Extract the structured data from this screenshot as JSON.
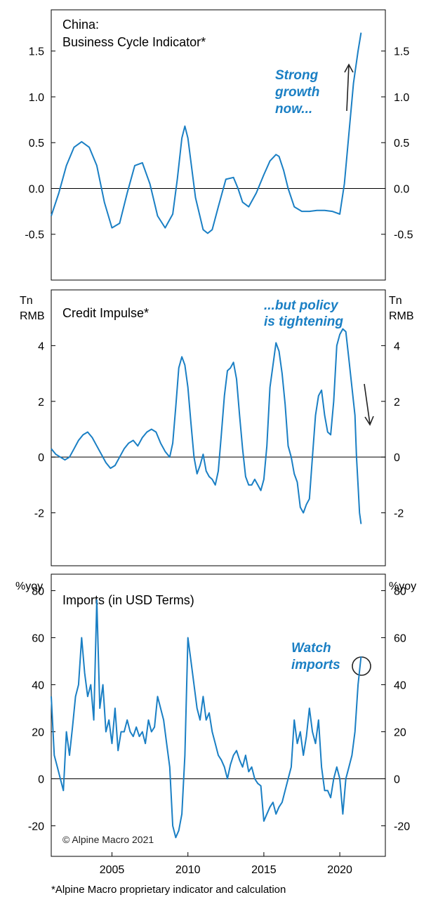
{
  "chart_data": [
    {
      "type": "line",
      "title": "China:",
      "subtitle": "Business Cycle Indicator*",
      "ylabel": "",
      "ylim": [
        -1.0,
        1.95
      ],
      "yticks": [
        1.5,
        1.0,
        0.5,
        0.0,
        -0.5
      ],
      "ytick_labels": [
        "1.5",
        "1.0",
        "0.5",
        "0.0",
        "-0.5"
      ],
      "color": "#1a7fc4",
      "annotation": [
        "Strong",
        "growth",
        "now..."
      ],
      "annotation_arrow": "up",
      "x": [
        2001.0,
        2001.5,
        2002.0,
        2002.5,
        2003.0,
        2003.5,
        2004.0,
        2004.5,
        2005.0,
        2005.5,
        2006.0,
        2006.5,
        2007.0,
        2007.5,
        2008.0,
        2008.5,
        2009.0,
        2009.3,
        2009.6,
        2009.8,
        2010.0,
        2010.5,
        2011.0,
        2011.3,
        2011.6,
        2012.0,
        2012.5,
        2013.0,
        2013.3,
        2013.6,
        2014.0,
        2014.5,
        2015.0,
        2015.4,
        2015.8,
        2016.0,
        2016.3,
        2016.6,
        2017.0,
        2017.5,
        2018.0,
        2018.5,
        2019.0,
        2019.5,
        2020.0,
        2020.3,
        2020.6,
        2020.9,
        2021.2,
        2021.4
      ],
      "values": [
        -0.3,
        -0.05,
        0.25,
        0.45,
        0.51,
        0.45,
        0.25,
        -0.15,
        -0.43,
        -0.38,
        -0.05,
        0.25,
        0.28,
        0.05,
        -0.3,
        -0.43,
        -0.28,
        0.1,
        0.55,
        0.68,
        0.55,
        -0.1,
        -0.45,
        -0.49,
        -0.45,
        -0.2,
        0.1,
        0.12,
        0.0,
        -0.15,
        -0.2,
        -0.05,
        0.15,
        0.3,
        0.37,
        0.35,
        0.2,
        0.0,
        -0.2,
        -0.25,
        -0.25,
        -0.24,
        -0.24,
        -0.25,
        -0.28,
        0.05,
        0.6,
        1.15,
        1.5,
        1.7
      ]
    },
    {
      "type": "line",
      "title": "Credit Impulse*",
      "ylabel": "Tn RMB",
      "ylabel_lines": [
        "Tn",
        "RMB"
      ],
      "ylim": [
        -3.9,
        6.0
      ],
      "yticks": [
        4,
        2,
        0,
        -2
      ],
      "ytick_labels": [
        "4",
        "2",
        "0",
        "-2"
      ],
      "color": "#1a7fc4",
      "annotation": [
        "...but policy",
        "is tightening"
      ],
      "annotation_arrow": "down",
      "x": [
        2001.0,
        2001.3,
        2001.6,
        2001.9,
        2002.2,
        2002.5,
        2002.8,
        2003.1,
        2003.4,
        2003.7,
        2004.0,
        2004.3,
        2004.6,
        2004.9,
        2005.2,
        2005.5,
        2005.8,
        2006.1,
        2006.4,
        2006.7,
        2007.0,
        2007.3,
        2007.6,
        2007.9,
        2008.2,
        2008.5,
        2008.8,
        2009.0,
        2009.2,
        2009.4,
        2009.6,
        2009.8,
        2010.0,
        2010.2,
        2010.4,
        2010.6,
        2010.8,
        2011.0,
        2011.2,
        2011.4,
        2011.6,
        2011.8,
        2012.0,
        2012.2,
        2012.4,
        2012.6,
        2012.8,
        2013.0,
        2013.2,
        2013.4,
        2013.6,
        2013.8,
        2014.0,
        2014.2,
        2014.4,
        2014.6,
        2014.8,
        2015.0,
        2015.2,
        2015.4,
        2015.6,
        2015.8,
        2016.0,
        2016.2,
        2016.4,
        2016.6,
        2016.8,
        2017.0,
        2017.2,
        2017.4,
        2017.6,
        2017.8,
        2018.0,
        2018.2,
        2018.4,
        2018.6,
        2018.8,
        2019.0,
        2019.2,
        2019.4,
        2019.6,
        2019.8,
        2020.0,
        2020.2,
        2020.4,
        2020.6,
        2020.8,
        2021.0,
        2021.1,
        2021.2,
        2021.3,
        2021.4
      ],
      "values": [
        0.3,
        0.1,
        0.0,
        -0.1,
        0.0,
        0.3,
        0.6,
        0.8,
        0.9,
        0.7,
        0.4,
        0.1,
        -0.2,
        -0.4,
        -0.3,
        0.0,
        0.3,
        0.5,
        0.6,
        0.4,
        0.7,
        0.9,
        1.0,
        0.9,
        0.5,
        0.2,
        0.0,
        0.5,
        1.8,
        3.2,
        3.6,
        3.3,
        2.5,
        1.2,
        0.0,
        -0.6,
        -0.3,
        0.1,
        -0.5,
        -0.7,
        -0.8,
        -1.0,
        -0.5,
        0.8,
        2.2,
        3.1,
        3.2,
        3.4,
        2.8,
        1.5,
        0.3,
        -0.7,
        -1.0,
        -1.0,
        -0.8,
        -1.0,
        -1.2,
        -0.8,
        0.4,
        2.5,
        3.3,
        4.1,
        3.8,
        3.0,
        1.9,
        0.4,
        0.0,
        -0.6,
        -0.9,
        -1.8,
        -2.0,
        -1.7,
        -1.5,
        0.0,
        1.5,
        2.2,
        2.4,
        1.5,
        0.9,
        0.8,
        2.0,
        4.0,
        4.4,
        4.6,
        4.5,
        3.5,
        2.5,
        1.5,
        0.0,
        -1.0,
        -2.0,
        -2.4
      ]
    },
    {
      "type": "line",
      "title": "Imports (in USD Terms)",
      "ylabel": "%yoy",
      "ylim": [
        -33,
        87
      ],
      "yticks": [
        80,
        60,
        40,
        20,
        0,
        -20
      ],
      "ytick_labels": [
        "80",
        "60",
        "40",
        "20",
        "0",
        "-20"
      ],
      "xlim": [
        2001.0,
        2023.0
      ],
      "xticks": [
        2005,
        2010,
        2015,
        2020
      ],
      "xtick_labels": [
        "2005",
        "2010",
        "2015",
        "2020"
      ],
      "color": "#1a7fc4",
      "annotation": [
        "Watch",
        "imports"
      ],
      "annotation_marker": "circle",
      "x": [
        2001.0,
        2001.2,
        2001.4,
        2001.6,
        2001.8,
        2002.0,
        2002.2,
        2002.4,
        2002.6,
        2002.8,
        2003.0,
        2003.2,
        2003.4,
        2003.6,
        2003.8,
        2004.0,
        2004.2,
        2004.4,
        2004.6,
        2004.8,
        2005.0,
        2005.2,
        2005.4,
        2005.6,
        2005.8,
        2006.0,
        2006.2,
        2006.4,
        2006.6,
        2006.8,
        2007.0,
        2007.2,
        2007.4,
        2007.6,
        2007.8,
        2008.0,
        2008.2,
        2008.4,
        2008.6,
        2008.8,
        2009.0,
        2009.2,
        2009.4,
        2009.6,
        2009.8,
        2010.0,
        2010.2,
        2010.4,
        2010.6,
        2010.8,
        2011.0,
        2011.2,
        2011.4,
        2011.6,
        2011.8,
        2012.0,
        2012.2,
        2012.4,
        2012.6,
        2012.8,
        2013.0,
        2013.2,
        2013.4,
        2013.6,
        2013.8,
        2014.0,
        2014.2,
        2014.4,
        2014.6,
        2014.8,
        2015.0,
        2015.2,
        2015.4,
        2015.6,
        2015.8,
        2016.0,
        2016.2,
        2016.4,
        2016.6,
        2016.8,
        2017.0,
        2017.2,
        2017.4,
        2017.6,
        2017.8,
        2018.0,
        2018.2,
        2018.4,
        2018.6,
        2018.8,
        2019.0,
        2019.2,
        2019.4,
        2019.6,
        2019.8,
        2020.0,
        2020.2,
        2020.4,
        2020.6,
        2020.8,
        2021.0,
        2021.2,
        2021.4
      ],
      "values": [
        35,
        10,
        5,
        0,
        -5,
        20,
        10,
        22,
        35,
        40,
        60,
        45,
        35,
        40,
        25,
        76,
        30,
        40,
        20,
        25,
        15,
        30,
        12,
        20,
        20,
        25,
        20,
        18,
        22,
        18,
        20,
        15,
        25,
        20,
        22,
        35,
        30,
        25,
        15,
        5,
        -20,
        -25,
        -22,
        -15,
        10,
        60,
        50,
        40,
        30,
        25,
        35,
        25,
        28,
        20,
        15,
        10,
        8,
        5,
        0,
        6,
        10,
        12,
        8,
        5,
        10,
        3,
        5,
        0,
        -2,
        -3,
        -18,
        -15,
        -12,
        -10,
        -15,
        -12,
        -10,
        -5,
        0,
        5,
        25,
        15,
        20,
        10,
        18,
        30,
        20,
        15,
        25,
        5,
        -5,
        -5,
        -8,
        0,
        5,
        0,
        -15,
        0,
        5,
        10,
        20,
        40,
        52
      ]
    }
  ],
  "copyright": "© Alpine Macro 2021",
  "footnote": "*Alpine Macro proprietary indicator and calculation"
}
